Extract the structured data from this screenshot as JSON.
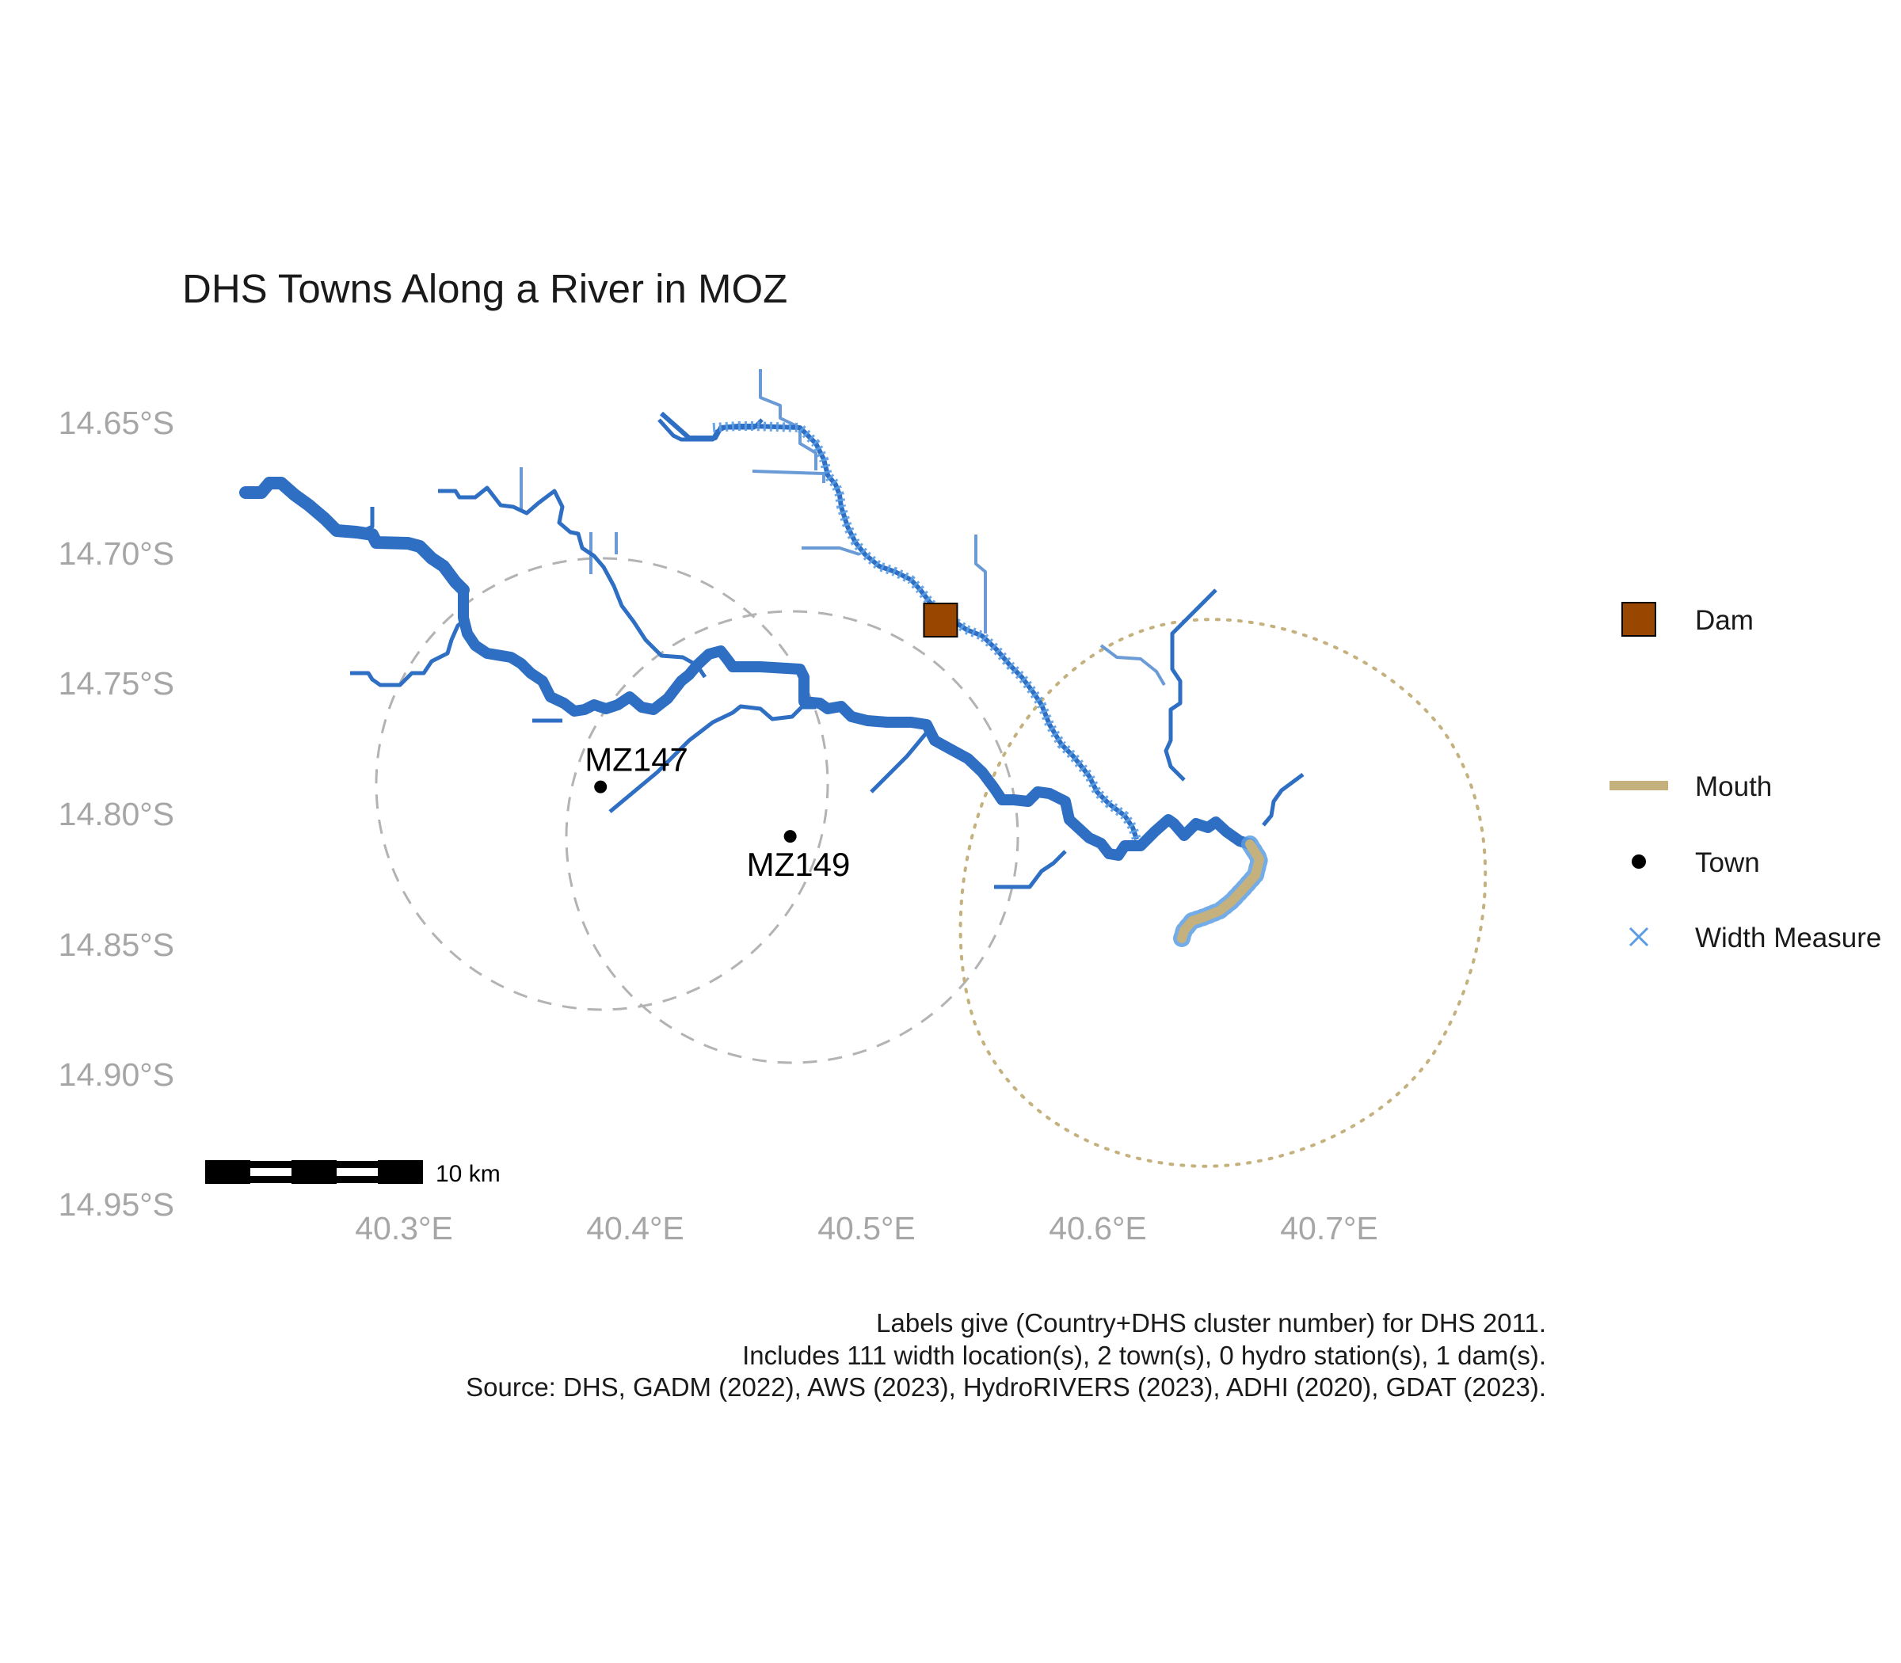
{
  "title": "DHS Towns Along a River in MOZ",
  "axes": {
    "y_ticks": [
      "14.65°S",
      "14.70°S",
      "14.75°S",
      "14.80°S",
      "14.85°S",
      "14.90°S",
      "14.95°S"
    ],
    "x_ticks": [
      "40.3°E",
      "40.4°E",
      "40.5°E",
      "40.6°E",
      "40.7°E"
    ]
  },
  "towns": [
    {
      "label": "MZ147",
      "lon": 40.385,
      "lat": -14.79
    },
    {
      "label": "MZ149",
      "lon": 40.467,
      "lat": -14.809
    }
  ],
  "dam": {
    "lon": 40.532,
    "lat": -14.726
  },
  "scale_bar": {
    "label": "10 km"
  },
  "legend": {
    "dam": "Dam",
    "mouth": "Mouth",
    "town": "Town",
    "width_measure": "Width Measure"
  },
  "caption": [
    "Labels give (Country+DHS cluster number) for DHS 2011.",
    "Includes 111 width location(s), 2 town(s), 0 hydro station(s), 1 dam(s).",
    "Source: DHS, GADM (2022), AWS (2023), HydroRIVERS (2023), ADHI (2020), GDAT (2023)."
  ],
  "colors": {
    "river_main": "#2e6fc4",
    "river_light": "#6a9bd6",
    "width_measure": "#5b9de3",
    "mouth": "#c4b17e",
    "dam": "#994700",
    "town": "#000000",
    "buffer_circle": "#b3b3b3",
    "mouth_buffer": "#c4b17e",
    "axis_text": "#a6a6a6"
  },
  "chart_data": {
    "type": "map",
    "title": "DHS Towns Along a River in MOZ",
    "x_ticks": [
      40.3,
      40.4,
      40.5,
      40.6,
      40.7
    ],
    "y_ticks": [
      -14.65,
      -14.7,
      -14.75,
      -14.8,
      -14.85,
      -14.9,
      -14.95
    ],
    "grid": false,
    "legend_placement": "right",
    "width_locations": 111,
    "towns_count": 2,
    "hydro_stations": 0,
    "dams": 1
  }
}
